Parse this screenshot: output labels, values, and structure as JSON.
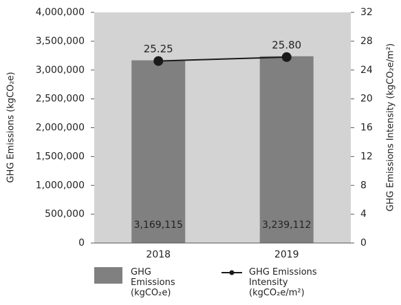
{
  "chart_data": {
    "type": "bar",
    "categories": [
      "2018",
      "2019"
    ],
    "series": [
      {
        "name": "GHG Emissions (kgCO₂e)",
        "type": "bar",
        "color": "#808080",
        "values": [
          3169115,
          3239112
        ],
        "value_labels": [
          "3,169,115",
          "3,239,112"
        ]
      },
      {
        "name": "GHG Emissions Intensity (kgCO₂e/m²)",
        "type": "line",
        "axis": "y2",
        "color": "#1a1a1a",
        "values": [
          25.25,
          25.8
        ],
        "value_labels": [
          "25.25",
          "25.80"
        ]
      }
    ],
    "ylabel": "GHG Emissions (kgCO₂e)",
    "y2label": "GHG Emissions  Intensity (kgCO₂e/m²)",
    "ylim": [
      0,
      4000000
    ],
    "yticks": [
      {
        "value": 0,
        "label": "0"
      },
      {
        "value": 500000,
        "label": "500,000"
      },
      {
        "value": 1000000,
        "label": "1,000,000"
      },
      {
        "value": 1500000,
        "label": "1,500,000"
      },
      {
        "value": 2000000,
        "label": "2,000,000"
      },
      {
        "value": 2500000,
        "label": "2,500,000"
      },
      {
        "value": 3000000,
        "label": "3,000,000"
      },
      {
        "value": 3500000,
        "label": "3,500,000"
      },
      {
        "value": 4000000,
        "label": "4,000,000"
      }
    ],
    "y2lim": [
      0,
      32
    ],
    "y2ticks": [
      0,
      4,
      8,
      12,
      16,
      20,
      24,
      28,
      32
    ],
    "plot_background": "#d3d3d3"
  }
}
